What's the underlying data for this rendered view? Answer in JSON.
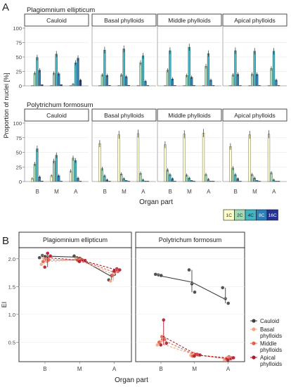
{
  "panels": {
    "a_label": "A",
    "b_label": "B"
  },
  "chart_data": [
    {
      "type": "bar",
      "panel": "A",
      "ylabel": "Proportion of nuclei [%]",
      "xlabel": "Organ part",
      "ylim": [
        0,
        100
      ],
      "y_ticks": [
        "0",
        "25",
        "50",
        "75",
        "100"
      ],
      "categories": [
        "B",
        "M",
        "A"
      ],
      "species": [
        "Plagiomnium ellipticum",
        "Polytrichum formosum"
      ],
      "facets": [
        "Cauloid",
        "Basal phylloids",
        "Middle phylloids",
        "Apical phylloids"
      ],
      "ploidy_legend": [
        "1C",
        "2C",
        "4C",
        "8C",
        "16C"
      ],
      "colors": [
        "#ffffcc",
        "#a1dab4",
        "#41b6c4",
        "#2c7fb8",
        "#253494"
      ],
      "values": [
        [
          [
            [
              0,
              22,
              49,
              27,
              2
            ],
            [
              0,
              22,
              55,
              21,
              2
            ],
            [
              0,
              3,
              40,
              48,
              10
            ]
          ],
          [
            [
              0,
              19,
              62,
              18,
              1
            ],
            [
              0,
              19,
              64,
              16,
              1
            ],
            [
              0,
              40,
              52,
              8,
              0
            ]
          ],
          [
            [
              0,
              27,
              61,
              12,
              0
            ],
            [
              0,
              18,
              67,
              15,
              0
            ],
            [
              0,
              34,
              56,
              10,
              0
            ]
          ],
          [
            [
              0,
              19,
              61,
              20,
              0
            ],
            [
              0,
              20,
              60,
              20,
              0
            ],
            [
              0,
              30,
              60,
              10,
              0
            ]
          ]
        ],
        [
          [
            [
              5,
              30,
              56,
              8,
              1
            ],
            [
              10,
              35,
              45,
              10,
              0
            ],
            [
              18,
              40,
              36,
              6,
              0
            ]
          ],
          [
            [
              65,
              22,
              10,
              3,
              0
            ],
            [
              80,
              13,
              5,
              2,
              0
            ],
            [
              82,
              14,
              3,
              1,
              0
            ]
          ],
          [
            [
              63,
              20,
              12,
              5,
              0
            ],
            [
              81,
              11,
              6,
              2,
              0
            ],
            [
              83,
              12,
              4,
              1,
              0
            ]
          ],
          [
            [
              60,
              23,
              12,
              5,
              0
            ],
            [
              80,
              12,
              6,
              2,
              0
            ],
            [
              81,
              15,
              3,
              1,
              0
            ]
          ]
        ]
      ]
    },
    {
      "type": "scatter",
      "panel": "B",
      "ylabel": "EI",
      "xlabel": "Organ part",
      "ylim": [
        0,
        2.25
      ],
      "y_ticks": [
        "0.5",
        "1.0",
        "1.5",
        "2.0"
      ],
      "categories": [
        "B",
        "M",
        "A"
      ],
      "facets": [
        "Plagiomnium ellipticum",
        "Polytrichum formosum"
      ],
      "series": [
        {
          "name": "Cauloid",
          "color": "#404040",
          "dashed": false,
          "means": [
            [
              2.05,
              2.03,
              1.68
            ],
            [
              1.7,
              1.58,
              1.27
            ]
          ],
          "points": [
            [
              [
                2.02,
                2.06,
                2.04
              ],
              [
                2.05,
                2.02,
                2.01
              ],
              [
                1.62,
                1.7,
                1.72
              ]
            ],
            [
              [
                1.72,
                1.71,
                1.7
              ],
              [
                1.8,
                1.55,
                1.4
              ],
              [
                1.48,
                1.28,
                1.2
              ]
            ]
          ]
        },
        {
          "name": "Basal phylloids",
          "color": "#f4a582",
          "dashed": true,
          "means": [
            [
              1.95,
              1.98,
              1.72
            ],
            [
              0.48,
              0.28,
              0.2
            ]
          ],
          "points": [
            [
              [
                1.9,
                2.0,
                1.95
              ],
              [
                2.0,
                1.96,
                1.98
              ],
              [
                1.6,
                1.75,
                1.8
              ]
            ],
            [
              [
                0.45,
                0.5,
                0.55
              ],
              [
                0.26,
                0.3,
                0.28
              ],
              [
                0.18,
                0.22,
                0.2
              ]
            ]
          ]
        },
        {
          "name": "Middle phylloids",
          "color": "#e0604a",
          "dashed": true,
          "means": [
            [
              1.98,
              1.98,
              1.75
            ],
            [
              0.55,
              0.27,
              0.22
            ]
          ],
          "points": [
            [
              [
                1.95,
                2.0,
                1.98
              ],
              [
                1.97,
                2.0,
                1.96
              ],
              [
                1.7,
                1.78,
                1.77
              ]
            ],
            [
              [
                0.5,
                0.6,
                0.55
              ],
              [
                0.25,
                0.28,
                0.27
              ],
              [
                0.2,
                0.24,
                0.22
              ]
            ]
          ]
        },
        {
          "name": "Apical phylloids",
          "color": "#b2182b",
          "dashed": true,
          "means": [
            [
              2.02,
              1.97,
              1.8
            ],
            [
              0.6,
              0.27,
              0.2
            ]
          ],
          "points": [
            [
              [
                1.85,
                2.1,
                2.05
              ],
              [
                1.95,
                1.98,
                1.97
              ],
              [
                1.78,
                1.82,
                1.8
              ]
            ],
            [
              [
                0.45,
                0.9,
                0.48
              ],
              [
                0.25,
                0.28,
                0.27
              ],
              [
                0.18,
                0.2,
                0.22
              ]
            ]
          ]
        }
      ]
    }
  ]
}
